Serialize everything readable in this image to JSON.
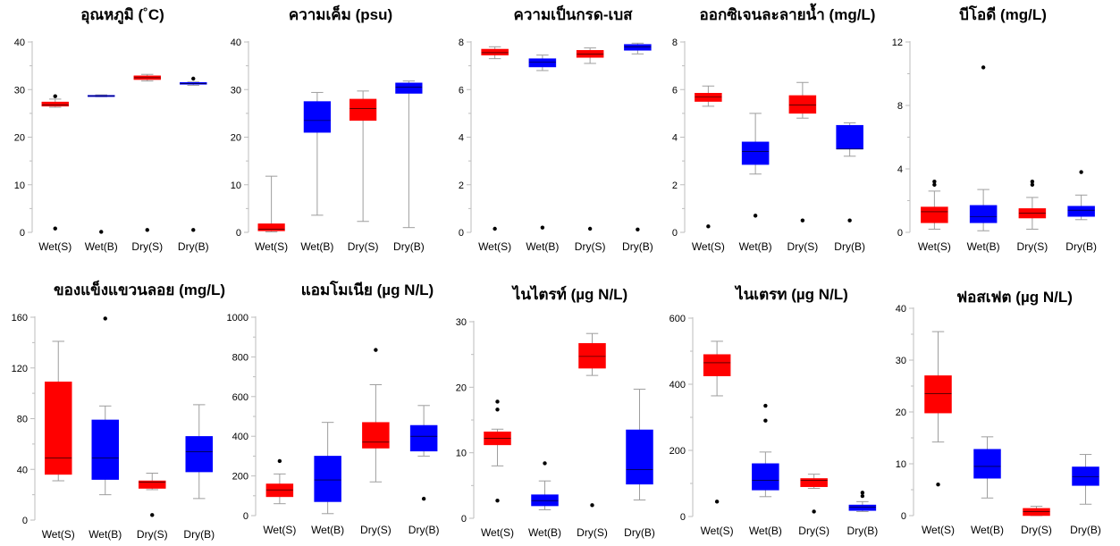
{
  "colors": {
    "red": "#ff0000",
    "blue": "#0000ff",
    "outlier": "#000000"
  },
  "chart_data": [
    {
      "type": "box",
      "title": "อุณหภูมิ (˚C)",
      "categories": [
        "Wet(S)",
        "Wet(B)",
        "Dry(S)",
        "Dry(B)"
      ],
      "yticks": [
        0,
        10,
        20,
        30,
        40
      ],
      "ylim": [
        0,
        40
      ],
      "boxes": [
        {
          "min": 26.3,
          "q1": 26.5,
          "median": 26.8,
          "q3": 27.4,
          "max": 28.0,
          "outliers": [
            28.6,
            0.8
          ],
          "color": "red"
        },
        {
          "min": 28.5,
          "q1": 28.6,
          "median": 28.7,
          "q3": 28.8,
          "max": 28.9,
          "outliers": [
            0.1
          ],
          "color": "blue"
        },
        {
          "min": 31.8,
          "q1": 32.1,
          "median": 32.5,
          "q3": 32.9,
          "max": 33.2,
          "outliers": [
            0.5
          ],
          "color": "red"
        },
        {
          "min": 30.9,
          "q1": 31.1,
          "median": 31.3,
          "q3": 31.5,
          "max": 31.6,
          "outliers": [
            32.3,
            0.5
          ],
          "color": "blue"
        }
      ]
    },
    {
      "type": "box",
      "title": "ความเค็ม (psu)",
      "categories": [
        "Wet(S)",
        "Wet(B)",
        "Dry(S)",
        "Dry(B)"
      ],
      "yticks": [
        0,
        10,
        20,
        30,
        40
      ],
      "ylim": [
        0,
        40
      ],
      "boxes": [
        {
          "min": 0.1,
          "q1": 0.3,
          "median": 0.7,
          "q3": 1.8,
          "max": 11.8,
          "outliers": [],
          "color": "red"
        },
        {
          "min": 3.6,
          "q1": 21.0,
          "median": 23.5,
          "q3": 27.5,
          "max": 29.4,
          "outliers": [],
          "color": "blue"
        },
        {
          "min": 2.3,
          "q1": 23.5,
          "median": 26.0,
          "q3": 28.0,
          "max": 29.7,
          "outliers": [],
          "color": "red"
        },
        {
          "min": 1.0,
          "q1": 29.2,
          "median": 30.5,
          "q3": 31.4,
          "max": 31.8,
          "outliers": [],
          "color": "blue"
        }
      ]
    },
    {
      "type": "box",
      "title": "ความเป็นกรด-เบส",
      "categories": [
        "Wet(S)",
        "Wet(B)",
        "Dry(S)",
        "Dry(B)"
      ],
      "yticks": [
        0,
        2,
        4,
        6,
        8
      ],
      "ylim": [
        0,
        8
      ],
      "boxes": [
        {
          "min": 7.3,
          "q1": 7.45,
          "median": 7.55,
          "q3": 7.7,
          "max": 7.8,
          "outliers": [
            0.15
          ],
          "color": "red"
        },
        {
          "min": 6.8,
          "q1": 6.95,
          "median": 7.15,
          "q3": 7.3,
          "max": 7.45,
          "outliers": [
            0.2
          ],
          "color": "blue"
        },
        {
          "min": 7.1,
          "q1": 7.35,
          "median": 7.5,
          "q3": 7.65,
          "max": 7.75,
          "outliers": [
            0.15
          ],
          "color": "red"
        },
        {
          "min": 7.5,
          "q1": 7.65,
          "median": 7.8,
          "q3": 7.9,
          "max": 7.95,
          "outliers": [
            0.12
          ],
          "color": "blue"
        }
      ]
    },
    {
      "type": "box",
      "title": "ออกซิเจนละลายน้ำ (mg/L)",
      "categories": [
        "Wet(S)",
        "Wet(B)",
        "Dry(S)",
        "Dry(B)"
      ],
      "yticks": [
        0,
        2,
        4,
        6,
        8
      ],
      "ylim": [
        0,
        8
      ],
      "boxes": [
        {
          "min": 5.3,
          "q1": 5.5,
          "median": 5.7,
          "q3": 5.85,
          "max": 6.15,
          "outliers": [
            0.25
          ],
          "color": "red"
        },
        {
          "min": 2.45,
          "q1": 2.85,
          "median": 3.4,
          "q3": 3.8,
          "max": 5.0,
          "outliers": [
            0.7
          ],
          "color": "blue"
        },
        {
          "min": 4.8,
          "q1": 5.0,
          "median": 5.35,
          "q3": 5.75,
          "max": 6.3,
          "outliers": [
            0.5
          ],
          "color": "red"
        },
        {
          "min": 3.2,
          "q1": 3.5,
          "median": 3.5,
          "q3": 4.5,
          "max": 4.6,
          "outliers": [
            0.5
          ],
          "color": "blue"
        }
      ]
    },
    {
      "type": "box",
      "title": "บีโอดี (mg/L)",
      "categories": [
        "Wet(S)",
        "Wet(B)",
        "Dry(S)",
        "Dry(B)"
      ],
      "yticks": [
        0,
        4,
        8,
        12
      ],
      "ylim": [
        0,
        12
      ],
      "boxes": [
        {
          "min": 0.2,
          "q1": 0.6,
          "median": 1.3,
          "q3": 1.6,
          "max": 2.6,
          "outliers": [
            3.0,
            3.2
          ],
          "color": "red"
        },
        {
          "min": 0.1,
          "q1": 0.6,
          "median": 1.0,
          "q3": 1.7,
          "max": 2.7,
          "outliers": [
            10.4
          ],
          "color": "blue"
        },
        {
          "min": 0.2,
          "q1": 0.9,
          "median": 1.2,
          "q3": 1.5,
          "max": 2.2,
          "outliers": [
            3.0,
            3.2
          ],
          "color": "red"
        },
        {
          "min": 0.8,
          "q1": 1.0,
          "median": 1.4,
          "q3": 1.65,
          "max": 2.35,
          "outliers": [
            3.8
          ],
          "color": "blue"
        }
      ]
    },
    {
      "type": "box",
      "title": "ของแข็งแขวนลอย (mg/L)",
      "categories": [
        "Wet(S)",
        "Wet(B)",
        "Dry(S)",
        "Dry(B)"
      ],
      "yticks": [
        0,
        40,
        80,
        120,
        160
      ],
      "ylim": [
        0,
        160
      ],
      "boxes": [
        {
          "min": 31,
          "q1": 36,
          "median": 49,
          "q3": 109,
          "max": 141,
          "outliers": [],
          "color": "red"
        },
        {
          "min": 20,
          "q1": 32,
          "median": 49,
          "q3": 79,
          "max": 90,
          "outliers": [
            159
          ],
          "color": "blue"
        },
        {
          "min": 24,
          "q1": 25,
          "median": 30,
          "q3": 31,
          "max": 37,
          "outliers": [
            4
          ],
          "color": "red"
        },
        {
          "min": 17,
          "q1": 38,
          "median": 54,
          "q3": 66,
          "max": 91,
          "outliers": [],
          "color": "blue"
        }
      ]
    },
    {
      "type": "box",
      "title": "แอมโมเนีย (µg N/L)",
      "categories": [
        "Wet(S)",
        "Wet(B)",
        "Dry(S)",
        "Dry(B)"
      ],
      "yticks": [
        0,
        200,
        400,
        600,
        800,
        1000
      ],
      "ylim": [
        0,
        1000
      ],
      "boxes": [
        {
          "min": 60,
          "q1": 95,
          "median": 130,
          "q3": 160,
          "max": 210,
          "outliers": [
            275
          ],
          "color": "red"
        },
        {
          "min": 10,
          "q1": 70,
          "median": 180,
          "q3": 300,
          "max": 470,
          "outliers": [],
          "color": "blue"
        },
        {
          "min": 170,
          "q1": 340,
          "median": 370,
          "q3": 470,
          "max": 660,
          "outliers": [
            835
          ],
          "color": "red"
        },
        {
          "min": 300,
          "q1": 325,
          "median": 400,
          "q3": 455,
          "max": 555,
          "outliers": [
            85
          ],
          "color": "blue"
        }
      ]
    },
    {
      "type": "box",
      "title": "ไนไตรท์ (µg N/L)",
      "categories": [
        "Wet(S)",
        "Wet(B)",
        "Dry(S)",
        "Dry(B)"
      ],
      "yticks": [
        0,
        10,
        20,
        30
      ],
      "ylim": [
        0,
        30
      ],
      "boxes": [
        {
          "min": 8.0,
          "q1": 11.2,
          "median": 12.2,
          "q3": 13.2,
          "max": 13.6,
          "outliers": [
            17.8,
            16.6,
            2.7
          ],
          "color": "red"
        },
        {
          "min": 1.3,
          "q1": 1.9,
          "median": 2.7,
          "q3": 3.6,
          "max": 5.7,
          "outliers": [
            8.4
          ],
          "color": "blue"
        },
        {
          "min": 21.8,
          "q1": 22.9,
          "median": 24.7,
          "q3": 26.7,
          "max": 28.2,
          "outliers": [
            2.0
          ],
          "color": "red"
        },
        {
          "min": 2.8,
          "q1": 5.2,
          "median": 7.4,
          "q3": 13.5,
          "max": 19.7,
          "outliers": [],
          "color": "blue"
        }
      ]
    },
    {
      "type": "box",
      "title": "ไนเตรท (µg N/L)",
      "categories": [
        "Wet(S)",
        "Wet(B)",
        "Dry(S)",
        "Dry(B)"
      ],
      "yticks": [
        0,
        200,
        400,
        600
      ],
      "ylim": [
        0,
        600
      ],
      "boxes": [
        {
          "min": 365,
          "q1": 425,
          "median": 465,
          "q3": 490,
          "max": 530,
          "outliers": [
            45
          ],
          "color": "red"
        },
        {
          "min": 60,
          "q1": 80,
          "median": 110,
          "q3": 160,
          "max": 195,
          "outliers": [
            335,
            290
          ],
          "color": "blue"
        },
        {
          "min": 85,
          "q1": 90,
          "median": 110,
          "q3": 115,
          "max": 128,
          "outliers": [
            15
          ],
          "color": "red"
        },
        {
          "min": 15,
          "q1": 18,
          "median": 28,
          "q3": 35,
          "max": 45,
          "outliers": [
            72,
            62
          ],
          "color": "blue"
        }
      ]
    },
    {
      "type": "box",
      "title": "ฟอสเฟต (µg N/L)",
      "categories": [
        "Wet(S)",
        "Wet(B)",
        "Dry(S)",
        "Dry(B)"
      ],
      "yticks": [
        0,
        10,
        20,
        30,
        40
      ],
      "ylim": [
        0,
        40
      ],
      "boxes": [
        {
          "min": 14.2,
          "q1": 19.8,
          "median": 23.5,
          "q3": 27.0,
          "max": 35.5,
          "outliers": [
            6.0
          ],
          "color": "red"
        },
        {
          "min": 3.4,
          "q1": 7.2,
          "median": 9.5,
          "q3": 12.8,
          "max": 15.2,
          "outliers": [],
          "color": "blue"
        },
        {
          "min": 0.0,
          "q1": 0.0,
          "median": 0.8,
          "q3": 1.4,
          "max": 1.8,
          "outliers": [],
          "color": "red"
        },
        {
          "min": 2.2,
          "q1": 5.8,
          "median": 7.5,
          "q3": 9.4,
          "max": 11.8,
          "outliers": [],
          "color": "blue"
        }
      ]
    }
  ]
}
